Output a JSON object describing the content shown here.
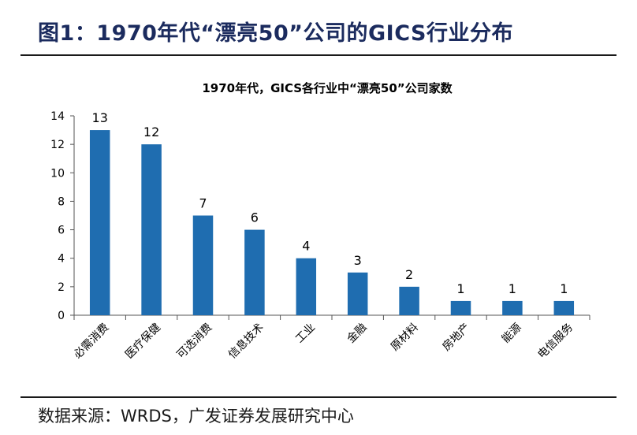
{
  "figure": {
    "title": "图1：1970年代“漂亮50”公司的GICS行业分布",
    "source": "数据来源：WRDS，广发证券发展研究中心"
  },
  "chart_data": {
    "type": "bar",
    "title": "1970年代，GICS各行业中“漂亮50”公司家数",
    "xlabel": "",
    "ylabel": "",
    "categories": [
      "必需消费",
      "医疗保健",
      "可选消费",
      "信息技术",
      "工业",
      "金融",
      "原材料",
      "房地产",
      "能源",
      "电信服务"
    ],
    "values": [
      13,
      12,
      7,
      6,
      4,
      3,
      2,
      1,
      1,
      1
    ],
    "ylim": [
      0,
      14
    ],
    "yticks": [
      0,
      2,
      4,
      6,
      8,
      10,
      12,
      14
    ],
    "bar_color": "#1f6db0",
    "grid": false,
    "legend": "none",
    "data_labels": true
  }
}
